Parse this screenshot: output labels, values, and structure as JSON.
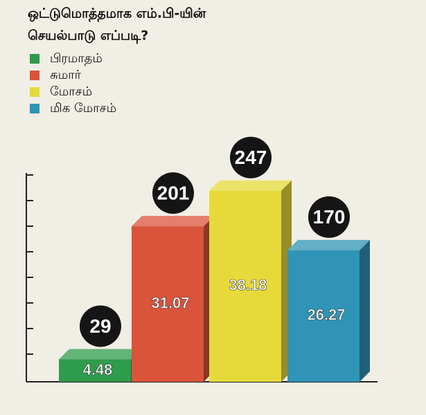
{
  "chart_data": {
    "type": "bar",
    "title_lines": [
      "ஒட்டுமொத்தமாக எம்.பி-யின்",
      "செயல்பாடு எப்படி?"
    ],
    "categories": [
      "பிரமாதம்",
      "சுமார்",
      "மோசம்",
      "மிக மோசம்"
    ],
    "values": [
      29,
      201,
      247,
      170
    ],
    "percentages": [
      4.48,
      31.07,
      38.18,
      26.27
    ],
    "colors": [
      "#2f9b4c",
      "#d9543a",
      "#e6da3a",
      "#2f94b6"
    ],
    "ylim": [
      0,
      270
    ]
  }
}
